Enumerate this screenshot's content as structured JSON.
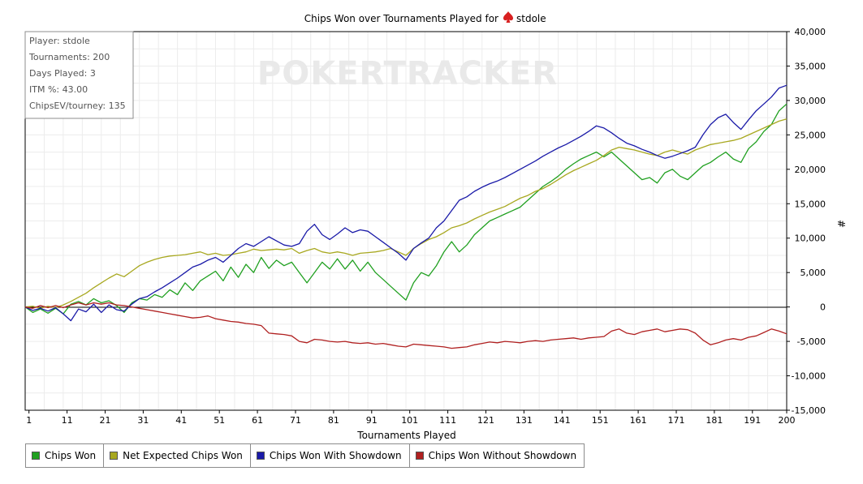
{
  "title": "Chips Won over Tournaments Played for",
  "player_name": "stdole",
  "title_icon": "spade-icon",
  "watermark": "POKERTRACKER",
  "info_box": [
    "Player: stdole",
    "Tournaments: 200",
    "Days Played: 3",
    "ITM %: 43.00",
    "ChipsEV/tourney: 135"
  ],
  "chart_data": {
    "type": "line",
    "title": "Chips Won over Tournaments Played for stdole",
    "xlabel": "Tournaments Played",
    "ylabel": "#",
    "xlim": [
      0,
      200
    ],
    "ylim": [
      -15000,
      40000
    ],
    "x_ticks": [
      "1",
      "11",
      "21",
      "31",
      "41",
      "51",
      "61",
      "71",
      "81",
      "91",
      "101",
      "111",
      "121",
      "131",
      "141",
      "151",
      "161",
      "171",
      "181",
      "191",
      "200"
    ],
    "y_ticks": [
      "40,000",
      "35,000",
      "30,000",
      "25,000",
      "20,000",
      "15,000",
      "10,000",
      "5,000",
      "0",
      "-5,000",
      "-10,000",
      "-15,000"
    ],
    "grid": true,
    "y_axis_side": "right",
    "legend_position": "bottom",
    "series": [
      {
        "name": "Chips Won",
        "color": "#20a020",
        "x": [
          0,
          2,
          4,
          6,
          8,
          10,
          12,
          14,
          16,
          18,
          20,
          22,
          24,
          26,
          28,
          30,
          32,
          34,
          36,
          38,
          40,
          42,
          44,
          46,
          48,
          50,
          52,
          54,
          56,
          58,
          60,
          62,
          64,
          66,
          68,
          70,
          72,
          74,
          76,
          78,
          80,
          82,
          84,
          86,
          88,
          90,
          92,
          94,
          96,
          98,
          100,
          102,
          104,
          106,
          108,
          110,
          112,
          114,
          116,
          118,
          120,
          122,
          124,
          126,
          128,
          130,
          132,
          134,
          136,
          138,
          140,
          142,
          144,
          146,
          148,
          150,
          152,
          154,
          156,
          158,
          160,
          162,
          164,
          166,
          168,
          170,
          172,
          174,
          176,
          178,
          180,
          182,
          184,
          186,
          188,
          190,
          192,
          194,
          196,
          198,
          200
        ],
        "y": [
          0,
          -800,
          -300,
          -900,
          -200,
          -1000,
          400,
          800,
          300,
          1200,
          600,
          900,
          200,
          -800,
          600,
          1200,
          1000,
          1800,
          1400,
          2500,
          1800,
          3500,
          2400,
          3800,
          4500,
          5200,
          3800,
          5800,
          4300,
          6200,
          5000,
          7200,
          5600,
          6800,
          6000,
          6500,
          5000,
          3500,
          5000,
          6500,
          5500,
          7000,
          5500,
          6800,
          5200,
          6500,
          5000,
          4000,
          3000,
          2000,
          1000,
          3500,
          5000,
          4500,
          6000,
          8000,
          9500,
          8000,
          9000,
          10500,
          11500,
          12500,
          13000,
          13500,
          14000,
          14500,
          15500,
          16500,
          17500,
          18200,
          19000,
          20000,
          20800,
          21500,
          22000,
          22500,
          21800,
          22500,
          21500,
          20500,
          19500,
          18500,
          18800,
          18000,
          19500,
          20000,
          19000,
          18500,
          19500,
          20500,
          21000,
          21800,
          22500,
          21500,
          21000,
          23000,
          24000,
          25500,
          26500,
          28500,
          29500
        ]
      },
      {
        "name": "Net Expected Chips Won",
        "color": "#a8a820",
        "x": [
          0,
          2,
          4,
          6,
          8,
          10,
          12,
          14,
          16,
          18,
          20,
          22,
          24,
          26,
          28,
          30,
          32,
          34,
          36,
          38,
          40,
          42,
          44,
          46,
          48,
          50,
          52,
          54,
          56,
          58,
          60,
          62,
          64,
          66,
          68,
          70,
          72,
          74,
          76,
          78,
          80,
          82,
          84,
          86,
          88,
          90,
          92,
          94,
          96,
          98,
          100,
          102,
          104,
          106,
          108,
          110,
          112,
          114,
          116,
          118,
          120,
          122,
          124,
          126,
          128,
          130,
          132,
          134,
          136,
          138,
          140,
          142,
          144,
          146,
          148,
          150,
          152,
          154,
          156,
          158,
          160,
          162,
          164,
          166,
          168,
          170,
          172,
          174,
          176,
          178,
          180,
          182,
          184,
          186,
          188,
          190,
          192,
          194,
          196,
          198,
          200
        ],
        "y": [
          0,
          100,
          -200,
          100,
          -100,
          300,
          800,
          1400,
          2000,
          2800,
          3500,
          4200,
          4800,
          4400,
          5200,
          6000,
          6500,
          6900,
          7200,
          7400,
          7500,
          7600,
          7800,
          8000,
          7600,
          7800,
          7500,
          7600,
          7800,
          8000,
          8400,
          8200,
          8300,
          8400,
          8300,
          8500,
          7800,
          8200,
          8500,
          8000,
          7800,
          8000,
          7800,
          7500,
          7800,
          7900,
          8000,
          8200,
          8500,
          8000,
          7500,
          8500,
          9200,
          9800,
          10200,
          10800,
          11500,
          11800,
          12200,
          12800,
          13300,
          13800,
          14200,
          14600,
          15200,
          15800,
          16200,
          16800,
          17200,
          17800,
          18500,
          19200,
          19800,
          20300,
          20800,
          21300,
          22000,
          22800,
          23200,
          23000,
          22800,
          22500,
          22200,
          22000,
          22500,
          22800,
          22500,
          22200,
          22800,
          23200,
          23600,
          23800,
          24000,
          24200,
          24500,
          25000,
          25500,
          26000,
          26500,
          27000,
          27300
        ]
      },
      {
        "name": "Chips Won With Showdown",
        "color": "#1a1aa8",
        "x": [
          0,
          2,
          4,
          6,
          8,
          10,
          12,
          14,
          16,
          18,
          20,
          22,
          24,
          26,
          28,
          30,
          32,
          34,
          36,
          38,
          40,
          42,
          44,
          46,
          48,
          50,
          52,
          54,
          56,
          58,
          60,
          62,
          64,
          66,
          68,
          70,
          72,
          74,
          76,
          78,
          80,
          82,
          84,
          86,
          88,
          90,
          92,
          94,
          96,
          98,
          100,
          102,
          104,
          106,
          108,
          110,
          112,
          114,
          116,
          118,
          120,
          122,
          124,
          126,
          128,
          130,
          132,
          134,
          136,
          138,
          140,
          142,
          144,
          146,
          148,
          150,
          152,
          154,
          156,
          158,
          160,
          162,
          164,
          166,
          168,
          170,
          172,
          174,
          176,
          178,
          180,
          182,
          184,
          186,
          188,
          190,
          192,
          194,
          196,
          198,
          200
        ],
        "y": [
          0,
          -500,
          -200,
          -600,
          -100,
          -1000,
          -2000,
          -300,
          -700,
          400,
          -800,
          300,
          -400,
          -600,
          400,
          1200,
          1500,
          2200,
          2800,
          3500,
          4200,
          5000,
          5800,
          6200,
          6800,
          7200,
          6500,
          7500,
          8500,
          9200,
          8800,
          9500,
          10200,
          9600,
          9000,
          8800,
          9200,
          11000,
          12000,
          10500,
          9800,
          10600,
          11500,
          10800,
          11200,
          11000,
          10200,
          9400,
          8600,
          7800,
          6800,
          8500,
          9300,
          10000,
          11500,
          12500,
          14000,
          15500,
          16000,
          16800,
          17400,
          17900,
          18300,
          18800,
          19400,
          20000,
          20600,
          21200,
          21900,
          22500,
          23100,
          23600,
          24200,
          24800,
          25500,
          26300,
          26000,
          25300,
          24500,
          23800,
          23400,
          22900,
          22500,
          22000,
          21600,
          21900,
          22300,
          22700,
          23200,
          25000,
          26500,
          27500,
          28000,
          26800,
          25800,
          27200,
          28500,
          29500,
          30500,
          31800,
          32200
        ]
      },
      {
        "name": "Chips Won Without Showdown",
        "color": "#b02020",
        "x": [
          0,
          2,
          4,
          6,
          8,
          10,
          12,
          14,
          16,
          18,
          20,
          22,
          24,
          26,
          28,
          30,
          32,
          34,
          36,
          38,
          40,
          42,
          44,
          46,
          48,
          50,
          52,
          54,
          56,
          58,
          60,
          62,
          64,
          66,
          68,
          70,
          72,
          74,
          76,
          78,
          80,
          82,
          84,
          86,
          88,
          90,
          92,
          94,
          96,
          98,
          100,
          102,
          104,
          106,
          108,
          110,
          112,
          114,
          116,
          118,
          120,
          122,
          124,
          126,
          128,
          130,
          132,
          134,
          136,
          138,
          140,
          142,
          144,
          146,
          148,
          150,
          152,
          154,
          156,
          158,
          160,
          162,
          164,
          166,
          168,
          170,
          172,
          174,
          176,
          178,
          180,
          182,
          184,
          186,
          188,
          190,
          192,
          194,
          196,
          198,
          200
        ],
        "y": [
          0,
          -200,
          200,
          -100,
          200,
          -100,
          300,
          600,
          300,
          600,
          400,
          600,
          300,
          200,
          0,
          -200,
          -400,
          -600,
          -800,
          -1000,
          -1200,
          -1400,
          -1600,
          -1500,
          -1300,
          -1700,
          -1900,
          -2100,
          -2200,
          -2400,
          -2500,
          -2700,
          -3800,
          -3900,
          -4000,
          -4200,
          -5000,
          -5200,
          -4700,
          -4800,
          -5000,
          -5100,
          -5000,
          -5200,
          -5300,
          -5200,
          -5400,
          -5300,
          -5500,
          -5700,
          -5800,
          -5400,
          -5500,
          -5600,
          -5700,
          -5800,
          -6000,
          -5900,
          -5800,
          -5500,
          -5300,
          -5100,
          -5200,
          -5000,
          -5100,
          -5200,
          -5000,
          -4900,
          -5000,
          -4800,
          -4700,
          -4600,
          -4500,
          -4700,
          -4500,
          -4400,
          -4300,
          -3500,
          -3200,
          -3800,
          -4000,
          -3600,
          -3400,
          -3200,
          -3600,
          -3400,
          -3200,
          -3300,
          -3800,
          -4800,
          -5500,
          -5200,
          -4800,
          -4600,
          -4800,
          -4400,
          -4200,
          -3700,
          -3200,
          -3500,
          -3900
        ]
      }
    ]
  }
}
